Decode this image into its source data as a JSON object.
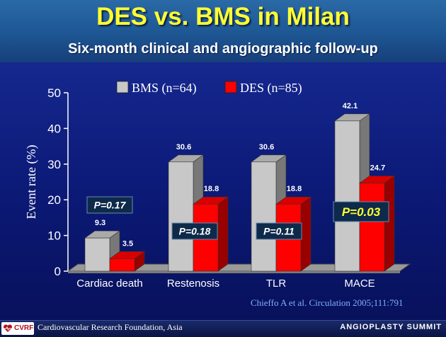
{
  "header": {
    "title": "DES vs. BMS in Milan",
    "subtitle": "Six-month clinical and angiographic follow-up"
  },
  "chart_data": {
    "type": "bar",
    "categories": [
      "Cardiac death",
      "Restenosis",
      "TLR",
      "MACE"
    ],
    "series": [
      {
        "name": "BMS  (n=64)",
        "values": [
          9.3,
          30.6,
          30.6,
          42.1
        ],
        "color": "#c8c8c8"
      },
      {
        "name": "DES (n=85)",
        "values": [
          3.5,
          18.8,
          18.8,
          24.7
        ],
        "color": "#ff0000"
      }
    ],
    "value_labels": [
      [
        "9.3",
        "30.6",
        "30.6",
        "42.1"
      ],
      [
        "3.5",
        "18.8",
        "18.8",
        "24.7"
      ]
    ],
    "ylabel": "Event rate (%)",
    "ylim": [
      0,
      50
    ],
    "yticks": [
      "0",
      "10",
      "20",
      "30",
      "40",
      "50"
    ],
    "legend_position": "top",
    "annotations": [
      {
        "category": "Cardiac death",
        "text": "P=0.17",
        "highlight": false
      },
      {
        "category": "Restenosis",
        "text": "P=0.18",
        "highlight": false
      },
      {
        "category": "TLR",
        "text": "P=0.11",
        "highlight": false
      },
      {
        "category": "MACE",
        "text": "P=0.03",
        "highlight": true
      }
    ]
  },
  "citation": "Chieffo A et al. Circulation 2005;111:791",
  "footer": {
    "logo_text": "CVRF",
    "organization": "Cardiovascular Research Foundation, Asia",
    "event": "ANGIOPLASTY SUMMIT"
  }
}
